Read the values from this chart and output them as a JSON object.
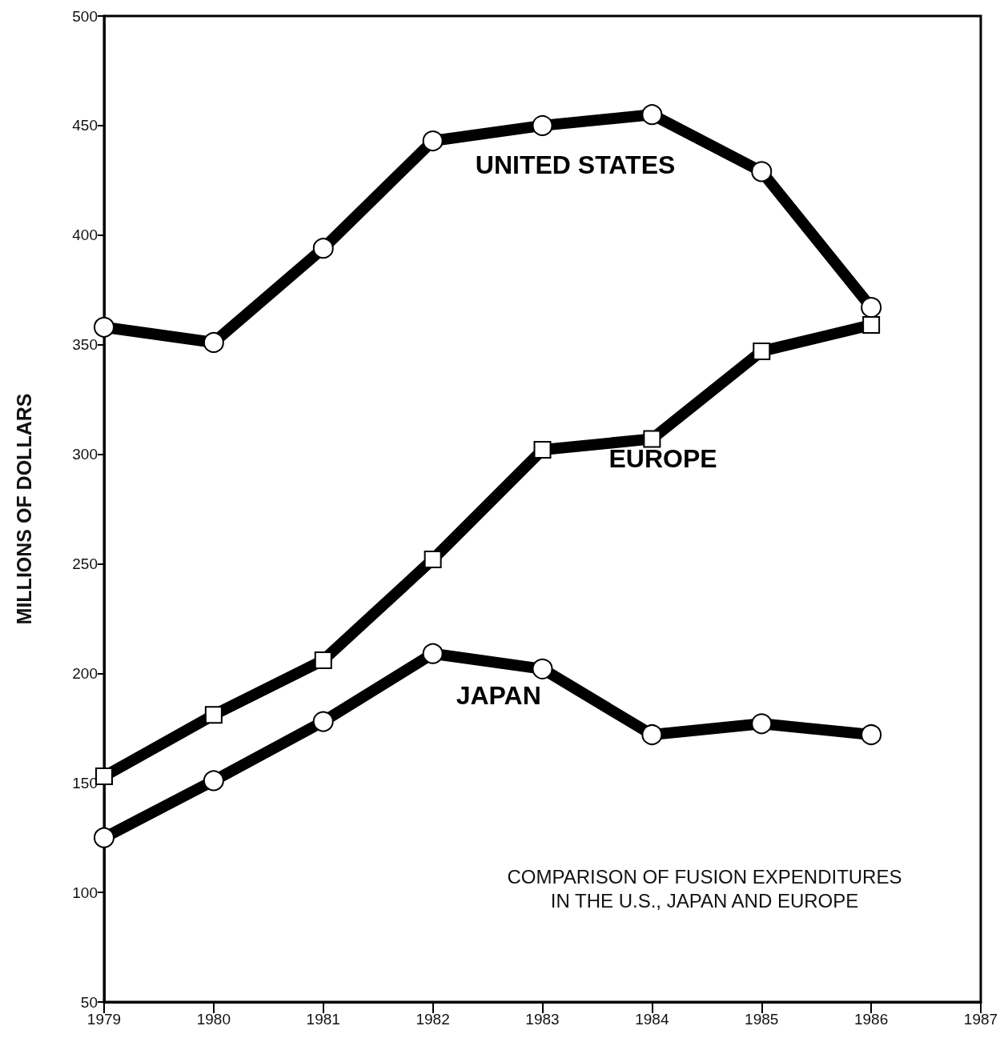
{
  "chart_data": {
    "type": "line",
    "ylabel": "MILLIONS OF DOLLARS",
    "x": [
      1979,
      1980,
      1981,
      1982,
      1983,
      1984,
      1985,
      1986
    ],
    "xlim": [
      1979,
      1987
    ],
    "xticks": [
      1979,
      1980,
      1981,
      1982,
      1983,
      1984,
      1985,
      1986,
      1987
    ],
    "ylim": [
      50,
      500
    ],
    "yticks": [
      50,
      100,
      150,
      200,
      250,
      300,
      350,
      400,
      450,
      500
    ],
    "grid": false,
    "legend": false,
    "line_style": "solid",
    "series": [
      {
        "name": "UNITED STATES",
        "color": "#000000",
        "marker": "circle",
        "values": [
          358,
          351,
          394,
          443,
          450,
          455,
          429,
          367
        ]
      },
      {
        "name": "EUROPE",
        "color": "#000000",
        "marker": "square",
        "values": [
          153,
          181,
          206,
          252,
          302,
          307,
          347,
          359
        ]
      },
      {
        "name": "JAPAN",
        "color": "#000000",
        "marker": "circle",
        "values": [
          125,
          151,
          178,
          209,
          202,
          172,
          177,
          172
        ]
      }
    ],
    "annotations": [
      "COMPARISON OF FUSION EXPENDITURES\nIN THE U.S., JAPAN AND EUROPE"
    ]
  }
}
